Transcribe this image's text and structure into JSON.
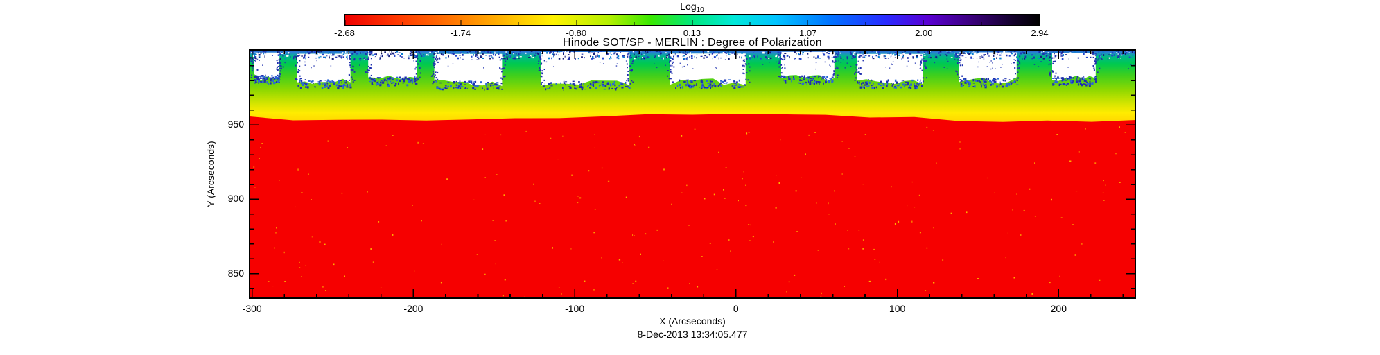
{
  "figure": {
    "title": "Hinode SOT/SP - MERLIN : Degree of Polarization",
    "timestamp": "8-Dec-2013 13:34:05.477"
  },
  "colorbar": {
    "label_main": "Log",
    "label_sub": "10",
    "tick_labels": [
      "-2.68",
      "-1.74",
      "-0.80",
      "0.13",
      "1.07",
      "2.00",
      "2.94"
    ]
  },
  "axes": {
    "xlabel": "X (Arcseconds)",
    "ylabel": "Y (Arcseconds)"
  },
  "chart_data": {
    "type": "heatmap",
    "title": "Hinode SOT/SP - MERLIN : Degree of Polarization",
    "xlabel": "X (Arcseconds)",
    "ylabel": "Y (Arcseconds)",
    "timestamp": "8-Dec-2013 13:34:05.477",
    "xlim": [
      -302,
      248
    ],
    "ylim": [
      833,
      1001
    ],
    "x_ticks": [
      -300,
      -200,
      -100,
      0,
      100,
      200
    ],
    "x_minor_step": 20,
    "y_ticks": [
      850,
      900,
      950
    ],
    "y_minor_step": 10,
    "colorbar": {
      "label": "Log10",
      "ticks": [
        -2.68,
        -1.74,
        -0.8,
        0.13,
        1.07,
        2.0,
        2.94
      ],
      "range": [
        -2.68,
        2.94
      ],
      "gradient": [
        [
          "0%",
          "#ef0000"
        ],
        [
          "8%",
          "#ff3c00"
        ],
        [
          "16%",
          "#ff7a00"
        ],
        [
          "24%",
          "#ffc000"
        ],
        [
          "30%",
          "#fff200"
        ],
        [
          "38%",
          "#b4f000"
        ],
        [
          "44%",
          "#3ae800"
        ],
        [
          "50%",
          "#00e87c"
        ],
        [
          "56%",
          "#00e8d8"
        ],
        [
          "62%",
          "#00c4ff"
        ],
        [
          "70%",
          "#0072ff"
        ],
        [
          "78%",
          "#2a2aff"
        ],
        [
          "84%",
          "#5a00d2"
        ],
        [
          "90%",
          "#3c0080"
        ],
        [
          "96%",
          "#14002e"
        ],
        [
          "100%",
          "#000000"
        ]
      ]
    },
    "base_color": "#f60000",
    "limb_y": 955,
    "limb_gradient": [
      [
        "0%",
        "#2233bb"
      ],
      [
        "4%",
        "#2a7fd4"
      ],
      [
        "10%",
        "#00b987"
      ],
      [
        "20%",
        "#00c94f"
      ],
      [
        "35%",
        "#3ecf1d"
      ],
      [
        "55%",
        "#8fd800"
      ],
      [
        "72%",
        "#cfe400"
      ],
      [
        "86%",
        "#ffec00"
      ],
      [
        "100%",
        "#ffd400"
      ]
    ],
    "bands": [
      {
        "y_from": 833,
        "y_to": 955,
        "approx_log10_value": -2.6,
        "color": "#f60000",
        "note": "uniform low degree of polarization over solar disk"
      },
      {
        "y_from": 955,
        "y_to": 961,
        "approx_log10_value": -1.0,
        "color": "#ffe800",
        "note": "yellow transition strip along limb"
      },
      {
        "y_from": 961,
        "y_to": 983,
        "approx_log10_value": -0.3,
        "color": "#3ecf1d",
        "note": "green gradient band"
      },
      {
        "y_from": 983,
        "y_to": 1001,
        "approx_log10_value": 0.8,
        "color": "#1e2fae",
        "note": "blue/cyan speckle near top edge"
      }
    ],
    "data_gaps_note": "white patches along top edge = missing data, separated by green columns",
    "data_gaps": [
      {
        "x0": -299,
        "x1": -283,
        "y_bottom": 982
      },
      {
        "x0": -272,
        "x1": -239,
        "y_bottom": 979
      },
      {
        "x0": -228,
        "x1": -198,
        "y_bottom": 981
      },
      {
        "x0": -187,
        "x1": -145,
        "y_bottom": 978
      },
      {
        "x0": -121,
        "x1": -66,
        "y_bottom": 978
      },
      {
        "x0": -41,
        "x1": 6,
        "y_bottom": 979
      },
      {
        "x0": 28,
        "x1": 61,
        "y_bottom": 982
      },
      {
        "x0": 75,
        "x1": 116,
        "y_bottom": 979
      },
      {
        "x0": 138,
        "x1": 174,
        "y_bottom": 980
      },
      {
        "x0": 196,
        "x1": 223,
        "y_bottom": 981
      }
    ]
  }
}
